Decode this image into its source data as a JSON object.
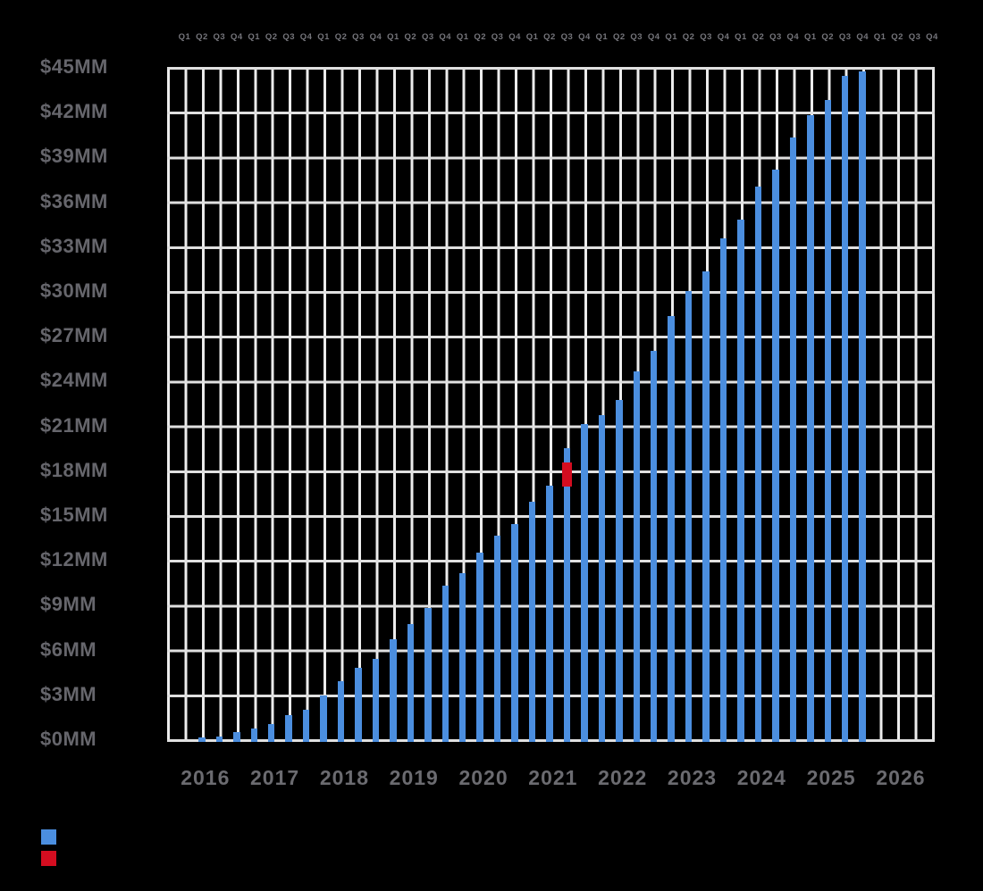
{
  "colors": {
    "background": "#000000",
    "bar_primary": "#4b8edf",
    "bar_highlight": "#d40d20",
    "grid_horizontal": "#e0e0e0",
    "grid_vertical": "#ececec",
    "axis_text": "#66666c"
  },
  "legend": {
    "items": [
      {
        "name": "primary-series",
        "swatch": "#4b8edf"
      },
      {
        "name": "highlight-series",
        "swatch": "#d40d20"
      }
    ]
  },
  "chart_data": {
    "type": "bar",
    "title": "",
    "xlabel": "",
    "ylabel": "",
    "ylim": [
      0,
      45
    ],
    "y_step_mm": 3,
    "grid": true,
    "y_ticks": [
      "$45MM",
      "$42MM",
      "$39MM",
      "$36MM",
      "$33MM",
      "$30MM",
      "$27MM",
      "$24MM",
      "$21MM",
      "$18MM",
      "$15MM",
      "$12MM",
      "$9MM",
      "$6MM",
      "$3MM",
      "$0MM"
    ],
    "quarter_labels": [
      "Q1",
      "Q2",
      "Q3",
      "Q4"
    ],
    "years": [
      "2016",
      "2017",
      "2018",
      "2019",
      "2020",
      "2021",
      "2022",
      "2023",
      "2024",
      "2025",
      "2026"
    ],
    "units": "MM USD",
    "bars": [
      {
        "y": "2016",
        "q": "Q1",
        "v": 0
      },
      {
        "y": "2016",
        "q": "Q2",
        "v": 0.1
      },
      {
        "y": "2016",
        "q": "Q3",
        "v": 0.2
      },
      {
        "y": "2016",
        "q": "Q4",
        "v": 0.5
      },
      {
        "y": "2017",
        "q": "Q1",
        "v": 0.7
      },
      {
        "y": "2017",
        "q": "Q2",
        "v": 1.0
      },
      {
        "y": "2017",
        "q": "Q3",
        "v": 1.6
      },
      {
        "y": "2017",
        "q": "Q4",
        "v": 2.0
      },
      {
        "y": "2018",
        "q": "Q1",
        "v": 2.9
      },
      {
        "y": "2018",
        "q": "Q2",
        "v": 3.9
      },
      {
        "y": "2018",
        "q": "Q3",
        "v": 4.8
      },
      {
        "y": "2018",
        "q": "Q4",
        "v": 5.4
      },
      {
        "y": "2019",
        "q": "Q1",
        "v": 6.7
      },
      {
        "y": "2019",
        "q": "Q2",
        "v": 7.7
      },
      {
        "y": "2019",
        "q": "Q3",
        "v": 8.8
      },
      {
        "y": "2019",
        "q": "Q4",
        "v": 10.3
      },
      {
        "y": "2020",
        "q": "Q1",
        "v": 11.1
      },
      {
        "y": "2020",
        "q": "Q2",
        "v": 12.5
      },
      {
        "y": "2020",
        "q": "Q3",
        "v": 13.6
      },
      {
        "y": "2020",
        "q": "Q4",
        "v": 14.4
      },
      {
        "y": "2021",
        "q": "Q1",
        "v": 15.9
      },
      {
        "y": "2021",
        "q": "Q2",
        "v": 17.0
      },
      {
        "y": "2021",
        "q": "Q3",
        "v": 19.5,
        "hl_from": 16.9,
        "hl_to": 18.5
      },
      {
        "y": "2021",
        "q": "Q4",
        "v": 21.1
      },
      {
        "y": "2022",
        "q": "Q1",
        "v": 21.7
      },
      {
        "y": "2022",
        "q": "Q2",
        "v": 22.7
      },
      {
        "y": "2022",
        "q": "Q3",
        "v": 24.6
      },
      {
        "y": "2022",
        "q": "Q4",
        "v": 26.0
      },
      {
        "y": "2023",
        "q": "Q1",
        "v": 28.3
      },
      {
        "y": "2023",
        "q": "Q2",
        "v": 30.0
      },
      {
        "y": "2023",
        "q": "Q3",
        "v": 31.3
      },
      {
        "y": "2023",
        "q": "Q4",
        "v": 33.5
      },
      {
        "y": "2024",
        "q": "Q1",
        "v": 34.8
      },
      {
        "y": "2024",
        "q": "Q2",
        "v": 37.0
      },
      {
        "y": "2024",
        "q": "Q3",
        "v": 38.1
      },
      {
        "y": "2024",
        "q": "Q4",
        "v": 40.3
      },
      {
        "y": "2025",
        "q": "Q1",
        "v": 41.8
      },
      {
        "y": "2025",
        "q": "Q2",
        "v": 42.8
      },
      {
        "y": "2025",
        "q": "Q3",
        "v": 44.4
      },
      {
        "y": "2025",
        "q": "Q4",
        "v": 44.7
      },
      {
        "y": "2026",
        "q": "Q1",
        "v": null
      },
      {
        "y": "2026",
        "q": "Q2",
        "v": null
      },
      {
        "y": "2026",
        "q": "Q3",
        "v": null
      },
      {
        "y": "2026",
        "q": "Q4",
        "v": null
      }
    ]
  }
}
